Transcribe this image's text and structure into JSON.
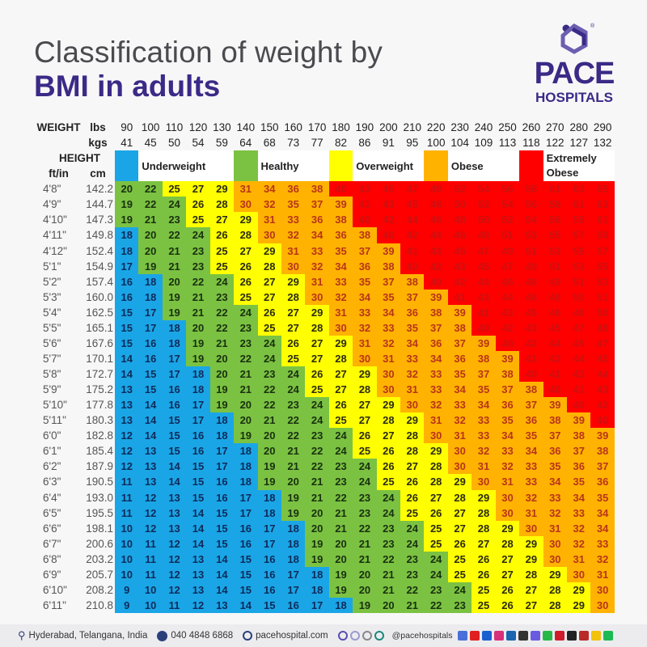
{
  "header": {
    "title_line1": "Classification of weight by",
    "title_line2": "BMI in adults"
  },
  "logo": {
    "name": "PACE",
    "sub": "HOSPITALS",
    "mark": "®"
  },
  "chart_data": {
    "type": "table",
    "row_header_labels": {
      "weight": "WEIGHT",
      "lbs": "lbs",
      "kgs": "kgs",
      "height": "HEIGHT",
      "ftin": "ft/in",
      "cm": "cm"
    },
    "lbs": [
      "90",
      "100",
      "110",
      "120",
      "130",
      "140",
      "150",
      "160",
      "170",
      "180",
      "190",
      "200",
      "210",
      "220",
      "230",
      "240",
      "250",
      "260",
      "270",
      "280",
      "290"
    ],
    "kgs": [
      "41",
      "45",
      "50",
      "54",
      "59",
      "64",
      "68",
      "73",
      "77",
      "82",
      "86",
      "91",
      "95",
      "100",
      "104",
      "109",
      "113",
      "118",
      "122",
      "127",
      "132"
    ],
    "categories": [
      {
        "name": "Underweight",
        "color": "#1aa6e6",
        "text_color": "#0f2a5a",
        "max": 18
      },
      {
        "name": "Healthy",
        "color": "#7cc242",
        "text_color": "#183010",
        "max": 24
      },
      {
        "name": "Overweight",
        "color": "#ffff00",
        "text_color": "#2b2b10",
        "max": 29
      },
      {
        "name": "Obese",
        "color": "#ffb300",
        "text_color": "#b8341a",
        "max": 39
      },
      {
        "name": "Extremely Obese",
        "color": "#ff0000",
        "text_color": "#cc1010",
        "max": 999
      }
    ],
    "rows": [
      {
        "ft": "4'8\"",
        "cm": "142.2",
        "bmi": [
          20,
          22,
          25,
          27,
          29,
          31,
          34,
          36,
          38,
          40,
          43,
          45,
          47,
          49,
          52,
          54,
          56,
          58,
          61,
          63,
          65
        ]
      },
      {
        "ft": "4'9\"",
        "cm": "144.7",
        "bmi": [
          19,
          22,
          24,
          26,
          28,
          30,
          32,
          35,
          37,
          39,
          41,
          43,
          45,
          48,
          50,
          52,
          54,
          56,
          58,
          61,
          63
        ]
      },
      {
        "ft": "4'10\"",
        "cm": "147.3",
        "bmi": [
          19,
          21,
          23,
          25,
          27,
          29,
          31,
          33,
          36,
          38,
          40,
          42,
          44,
          46,
          48,
          50,
          52,
          54,
          56,
          59,
          61
        ]
      },
      {
        "ft": "4'11\"",
        "cm": "149.8",
        "bmi": [
          18,
          20,
          22,
          24,
          26,
          28,
          30,
          32,
          34,
          36,
          38,
          40,
          42,
          44,
          46,
          48,
          51,
          53,
          55,
          57,
          59
        ]
      },
      {
        "ft": "4'12\"",
        "cm": "152.4",
        "bmi": [
          18,
          20,
          21,
          23,
          25,
          27,
          29,
          31,
          33,
          35,
          37,
          39,
          41,
          43,
          45,
          47,
          49,
          51,
          53,
          55,
          57
        ]
      },
      {
        "ft": "5'1\"",
        "cm": "154.9",
        "bmi": [
          17,
          19,
          21,
          23,
          25,
          26,
          28,
          30,
          32,
          34,
          36,
          38,
          40,
          42,
          43,
          45,
          47,
          49,
          51,
          53,
          55
        ]
      },
      {
        "ft": "5'2\"",
        "cm": "157.4",
        "bmi": [
          16,
          18,
          20,
          22,
          24,
          26,
          27,
          29,
          31,
          33,
          35,
          37,
          38,
          40,
          42,
          44,
          46,
          48,
          49,
          51,
          53
        ]
      },
      {
        "ft": "5'3\"",
        "cm": "160.0",
        "bmi": [
          16,
          18,
          19,
          21,
          23,
          25,
          27,
          28,
          30,
          32,
          34,
          35,
          37,
          39,
          41,
          43,
          44,
          46,
          48,
          50,
          51
        ]
      },
      {
        "ft": "5'4\"",
        "cm": "162.5",
        "bmi": [
          15,
          17,
          19,
          21,
          22,
          24,
          26,
          27,
          29,
          31,
          33,
          34,
          36,
          38,
          39,
          41,
          43,
          45,
          46,
          48,
          50
        ]
      },
      {
        "ft": "5'5\"",
        "cm": "165.1",
        "bmi": [
          15,
          17,
          18,
          20,
          22,
          23,
          25,
          27,
          28,
          30,
          32,
          33,
          35,
          37,
          38,
          40,
          42,
          43,
          45,
          47,
          48
        ]
      },
      {
        "ft": "5'6\"",
        "cm": "167.6",
        "bmi": [
          15,
          16,
          18,
          19,
          21,
          23,
          24,
          26,
          27,
          29,
          31,
          32,
          34,
          36,
          37,
          39,
          40,
          42,
          44,
          45,
          47
        ]
      },
      {
        "ft": "5'7\"",
        "cm": "170.1",
        "bmi": [
          14,
          16,
          17,
          19,
          20,
          22,
          24,
          25,
          27,
          28,
          30,
          31,
          33,
          34,
          36,
          38,
          39,
          41,
          42,
          44,
          45
        ]
      },
      {
        "ft": "5'8\"",
        "cm": "172.7",
        "bmi": [
          14,
          15,
          17,
          18,
          20,
          21,
          23,
          24,
          26,
          27,
          29,
          30,
          32,
          33,
          35,
          37,
          38,
          40,
          41,
          43,
          44
        ]
      },
      {
        "ft": "5'9\"",
        "cm": "175.2",
        "bmi": [
          13,
          15,
          16,
          18,
          19,
          21,
          22,
          24,
          25,
          27,
          28,
          30,
          31,
          33,
          34,
          35,
          37,
          38,
          40,
          41,
          43
        ]
      },
      {
        "ft": "5'10\"",
        "cm": "177.8",
        "bmi": [
          13,
          14,
          16,
          17,
          19,
          20,
          22,
          23,
          24,
          26,
          27,
          29,
          30,
          32,
          33,
          34,
          36,
          37,
          39,
          40,
          42
        ]
      },
      {
        "ft": "5'11\"",
        "cm": "180.3",
        "bmi": [
          13,
          14,
          15,
          17,
          18,
          20,
          21,
          22,
          24,
          25,
          27,
          28,
          29,
          31,
          32,
          33,
          35,
          36,
          38,
          39,
          40
        ]
      },
      {
        "ft": "6'0\"",
        "cm": "182.8",
        "bmi": [
          12,
          14,
          15,
          16,
          18,
          19,
          20,
          22,
          23,
          24,
          26,
          27,
          28,
          30,
          31,
          33,
          34,
          35,
          37,
          38,
          39
        ]
      },
      {
        "ft": "6'1\"",
        "cm": "185.4",
        "bmi": [
          12,
          13,
          15,
          16,
          17,
          18,
          20,
          21,
          22,
          24,
          25,
          26,
          28,
          29,
          30,
          32,
          33,
          34,
          36,
          37,
          38
        ]
      },
      {
        "ft": "6'2\"",
        "cm": "187.9",
        "bmi": [
          12,
          13,
          14,
          15,
          17,
          18,
          19,
          21,
          22,
          23,
          24,
          26,
          27,
          28,
          30,
          31,
          32,
          33,
          35,
          36,
          37
        ]
      },
      {
        "ft": "6'3\"",
        "cm": "190.5",
        "bmi": [
          11,
          13,
          14,
          15,
          16,
          18,
          19,
          20,
          21,
          23,
          24,
          25,
          26,
          28,
          29,
          30,
          31,
          33,
          34,
          35,
          36
        ]
      },
      {
        "ft": "6'4\"",
        "cm": "193.0",
        "bmi": [
          11,
          12,
          13,
          15,
          16,
          17,
          18,
          19,
          21,
          22,
          23,
          24,
          26,
          27,
          28,
          29,
          30,
          32,
          33,
          34,
          35
        ]
      },
      {
        "ft": "6'5\"",
        "cm": "195.5",
        "bmi": [
          11,
          12,
          13,
          14,
          15,
          17,
          18,
          19,
          20,
          21,
          23,
          24,
          25,
          26,
          27,
          28,
          30,
          31,
          32,
          33,
          34
        ]
      },
      {
        "ft": "6'6\"",
        "cm": "198.1",
        "bmi": [
          10,
          12,
          13,
          14,
          15,
          16,
          17,
          18,
          20,
          21,
          22,
          23,
          24,
          25,
          27,
          28,
          29,
          30,
          31,
          32,
          34
        ]
      },
      {
        "ft": "6'7\"",
        "cm": "200.6",
        "bmi": [
          10,
          11,
          12,
          14,
          15,
          16,
          17,
          18,
          19,
          20,
          21,
          23,
          24,
          25,
          26,
          27,
          28,
          29,
          30,
          32,
          33
        ]
      },
      {
        "ft": "6'8\"",
        "cm": "203.2",
        "bmi": [
          10,
          11,
          12,
          13,
          14,
          15,
          16,
          18,
          19,
          20,
          21,
          22,
          23,
          24,
          25,
          26,
          27,
          29,
          30,
          31,
          32
        ]
      },
      {
        "ft": "6'9\"",
        "cm": "205.7",
        "bmi": [
          10,
          11,
          12,
          13,
          14,
          15,
          16,
          17,
          18,
          19,
          20,
          21,
          23,
          24,
          25,
          26,
          27,
          28,
          29,
          30,
          31
        ]
      },
      {
        "ft": "6'10\"",
        "cm": "208.2",
        "bmi": [
          9,
          10,
          12,
          13,
          14,
          15,
          16,
          17,
          18,
          19,
          20,
          21,
          22,
          23,
          24,
          25,
          26,
          27,
          28,
          29,
          30
        ]
      },
      {
        "ft": "6'11\"",
        "cm": "210.8",
        "bmi": [
          9,
          10,
          11,
          12,
          13,
          14,
          15,
          16,
          17,
          18,
          19,
          20,
          21,
          22,
          23,
          25,
          26,
          27,
          28,
          29,
          30
        ]
      }
    ]
  },
  "footer": {
    "location": "Hyderabad, Telangana, India",
    "phone": "040 4848 6868",
    "website": "pacehospital.com",
    "handle": "@pacehospitals",
    "social_icons": [
      {
        "name": "google-business-icon",
        "color": "#4a6fd8"
      },
      {
        "name": "youtube-icon",
        "color": "#e02020"
      },
      {
        "name": "facebook-icon",
        "color": "#1a5fd0"
      },
      {
        "name": "instagram-icon",
        "color": "#d8307a"
      },
      {
        "name": "linkedin-icon",
        "color": "#1a64b0"
      },
      {
        "name": "x-icon",
        "color": "#333333"
      },
      {
        "name": "messenger-icon",
        "color": "#6a5ae0"
      },
      {
        "name": "whatsapp-icon",
        "color": "#28b84a"
      },
      {
        "name": "pinterest-icon",
        "color": "#d01c2a"
      },
      {
        "name": "threads-icon",
        "color": "#222222"
      },
      {
        "name": "quora-icon",
        "color": "#b92b27"
      },
      {
        "name": "google-news-icon",
        "color": "#f2c20c"
      },
      {
        "name": "spotify-icon",
        "color": "#1db954"
      }
    ]
  }
}
